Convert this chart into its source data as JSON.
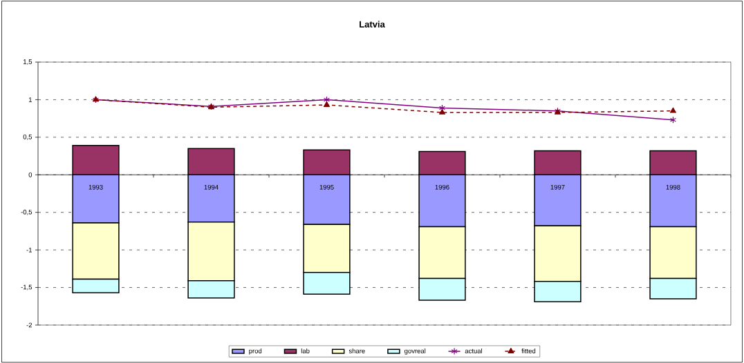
{
  "chart_data": {
    "type": "bar",
    "title": "Latvia",
    "stacked": true,
    "categories": [
      "1993",
      "1994",
      "1995",
      "1996",
      "1997",
      "1998"
    ],
    "series": [
      {
        "name": "prod",
        "color": "#9999ff",
        "values": [
          -0.64,
          -0.63,
          -0.66,
          -0.69,
          -0.68,
          -0.69
        ]
      },
      {
        "name": "lab",
        "color": "#993366",
        "values": [
          0.39,
          0.35,
          0.33,
          0.31,
          0.32,
          0.32
        ]
      },
      {
        "name": "share",
        "color": "#ffffcc",
        "values": [
          -0.75,
          -0.78,
          -0.64,
          -0.69,
          -0.74,
          -0.69
        ]
      },
      {
        "name": "govreal",
        "color": "#ccffff",
        "values": [
          -0.18,
          -0.23,
          -0.29,
          -0.29,
          -0.27,
          -0.27
        ]
      },
      {
        "name": "actual",
        "type": "line",
        "color": "#800080",
        "marker": "cross",
        "line_style": "solid",
        "values": [
          1.0,
          0.91,
          1.0,
          0.89,
          0.85,
          0.73
        ]
      },
      {
        "name": "fitted",
        "type": "line",
        "color": "#800000",
        "marker": "triangle",
        "line_style": "dashed",
        "values": [
          1.0,
          0.9,
          0.93,
          0.83,
          0.83,
          0.85
        ]
      }
    ],
    "ylim": [
      -2,
      1.5
    ],
    "yticks": [
      -2,
      {
        "value": -1.5,
        "label": "-1,5"
      },
      -1,
      {
        "value": -0.5,
        "label": "-0,5"
      },
      0,
      {
        "value": 0.5,
        "label": "0,5"
      },
      1,
      {
        "value": 1.5,
        "label": "1,5"
      }
    ],
    "grid": "y",
    "legend": "bottom"
  }
}
